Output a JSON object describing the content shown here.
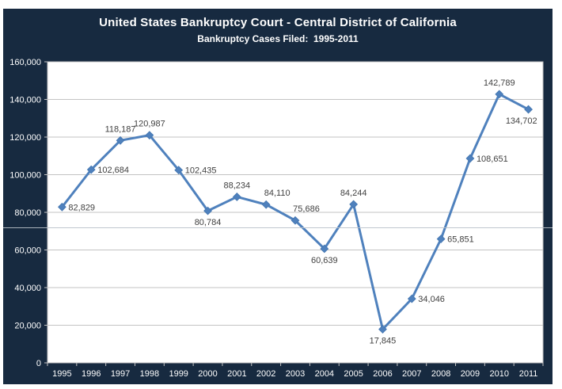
{
  "colors": {
    "panel_navy": "#172A40",
    "line_blue": "#4F81BD",
    "marker_blue": "#4779B3",
    "gridline_gray": "#C3C3C3",
    "plot_background": "#FFFFFF",
    "page_background": "#FFFFFF",
    "axis_text": "#FFFFFF",
    "data_label_text": "#3F3F3F",
    "divider_line": "#B9C1C9"
  },
  "chart_data": {
    "type": "line",
    "title": "United States Bankruptcy Court - Central District of California",
    "subtitle": "Bankruptcy Cases Filed:  1995-2011",
    "xlabel": "",
    "ylabel": "",
    "x": [
      "1995",
      "1996",
      "1997",
      "1998",
      "1999",
      "2000",
      "2001",
      "2002",
      "2003",
      "2004",
      "2005",
      "2006",
      "2007",
      "2008",
      "2009",
      "2010",
      "2011"
    ],
    "series": [
      {
        "name": "Bankruptcy Cases Filed",
        "values": [
          82829,
          102684,
          118187,
          120987,
          102435,
          80784,
          88234,
          84110,
          75686,
          60639,
          84244,
          17845,
          34046,
          65851,
          108651,
          142789,
          134702
        ]
      }
    ],
    "data_labels": [
      "82,829",
      "102,684",
      "118,187",
      "120,987",
      "102,435",
      "80,784",
      "88,234",
      "84,110",
      "75,686",
      "60,639",
      "84,244",
      "17,845",
      "34,046",
      "65,851",
      "108,651",
      "142,789",
      "134,702"
    ],
    "label_placement": [
      "right",
      "right",
      "above",
      "above",
      "right",
      "below",
      "above",
      "above-right",
      "above-right",
      "below",
      "above",
      "below",
      "right",
      "right",
      "right",
      "above",
      "below-left"
    ],
    "ylim": [
      0,
      160000
    ],
    "ytick_interval": 20000,
    "ytick_labels": [
      "0",
      "20,000",
      "40,000",
      "60,000",
      "80,000",
      "100,000",
      "120,000",
      "140,000",
      "160,000"
    ],
    "grid": true,
    "legend": "none",
    "marker": "diamond"
  }
}
